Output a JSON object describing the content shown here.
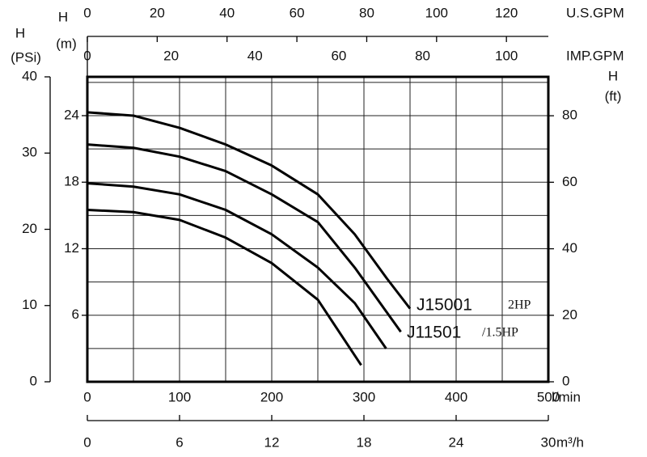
{
  "chart_data": {
    "type": "line",
    "x_label": "l/min",
    "xlim": [
      0,
      500
    ],
    "xticks": [
      0,
      100,
      200,
      300,
      400,
      500
    ],
    "x2_label": "m³/h",
    "x2lim": [
      0,
      30
    ],
    "x2ticks": [
      0,
      6,
      12,
      18,
      24,
      30
    ],
    "x3_label": "U.S.GPM",
    "x3lim": [
      0,
      132
    ],
    "x3ticks": [
      0,
      20,
      40,
      60,
      80,
      100,
      120
    ],
    "x4_label": "IMP.GPM",
    "x4lim": [
      0,
      110
    ],
    "x4ticks": [
      0,
      20,
      40,
      60,
      80,
      100
    ],
    "y_label": [
      "H",
      "(m)"
    ],
    "ylim": [
      0,
      27.5
    ],
    "yticks": [
      6,
      12,
      18,
      24
    ],
    "y2_label": [
      "H",
      "(PSi)"
    ],
    "y2lim": [
      0,
      40
    ],
    "y2ticks": [
      0,
      10,
      20,
      30,
      40
    ],
    "y3_label": [
      "H",
      "(ft)"
    ],
    "y3lim": [
      0,
      91.7
    ],
    "y3ticks": [
      0,
      20,
      40,
      60,
      80
    ],
    "grid": true,
    "x_gridlines": [
      50,
      100,
      150,
      200,
      250,
      300,
      350,
      400,
      450
    ],
    "y_gridlines": [
      3,
      6,
      9,
      12,
      15,
      18,
      21,
      24,
      27
    ],
    "series": [
      {
        "color": "#000000",
        "x": [
          0,
          50,
          100,
          150,
          200,
          250,
          290,
          325,
          350
        ],
        "values": [
          24.3,
          24,
          22.9,
          21.4,
          19.5,
          16.9,
          13.3,
          9.3,
          6.6
        ]
      },
      {
        "color": "#000000",
        "x": [
          0,
          50,
          100,
          150,
          200,
          250,
          290,
          340
        ],
        "values": [
          21.4,
          21.1,
          20.3,
          19.0,
          16.9,
          14.4,
          10.3,
          4.5
        ]
      },
      {
        "color": "#000000",
        "x": [
          0,
          50,
          100,
          150,
          200,
          250,
          290,
          324
        ],
        "values": [
          17.9,
          17.6,
          16.9,
          15.5,
          13.3,
          10.3,
          7.1,
          3.0
        ]
      },
      {
        "color": "#000000",
        "x": [
          0,
          50,
          100,
          150,
          200,
          250,
          297
        ],
        "values": [
          15.5,
          15.3,
          14.6,
          13.0,
          10.7,
          7.4,
          1.5
        ]
      }
    ],
    "annotations": [
      "J15001",
      "2HP",
      "J11501",
      "/1.5HP"
    ]
  }
}
